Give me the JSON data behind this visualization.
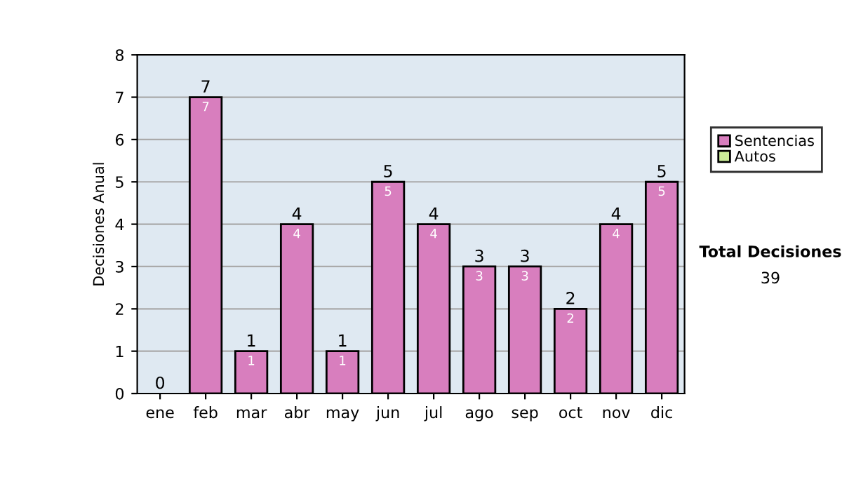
{
  "chart_data": {
    "type": "bar",
    "ylabel": "Decisiones Anual",
    "categories": [
      "ene",
      "feb",
      "mar",
      "abr",
      "may",
      "jun",
      "jul",
      "ago",
      "sep",
      "oct",
      "nov",
      "dic"
    ],
    "stacked": true,
    "series": [
      {
        "name": "Sentencias",
        "color": "#d87ebe",
        "values": [
          0,
          7,
          1,
          4,
          1,
          5,
          4,
          3,
          3,
          2,
          4,
          5
        ],
        "value_labels": [
          null,
          "7",
          "1",
          "4",
          "1",
          "5",
          "4",
          "3",
          "3",
          "2",
          "4",
          "5"
        ]
      },
      {
        "name": "Autos",
        "color": "#ccee99",
        "values": [
          0,
          0,
          0,
          0,
          0,
          0,
          0,
          0,
          0,
          0,
          0,
          0
        ]
      }
    ],
    "totals": [
      "0",
      "7",
      "1",
      "4",
      "1",
      "5",
      "4",
      "3",
      "3",
      "2",
      "4",
      "5"
    ],
    "ylim": [
      0,
      8
    ],
    "yticks": [
      0,
      1,
      2,
      3,
      4,
      5,
      6,
      7,
      8
    ],
    "grid": "y",
    "legend": "right",
    "annotations": [
      "Total Decisiones",
      "39"
    ]
  }
}
